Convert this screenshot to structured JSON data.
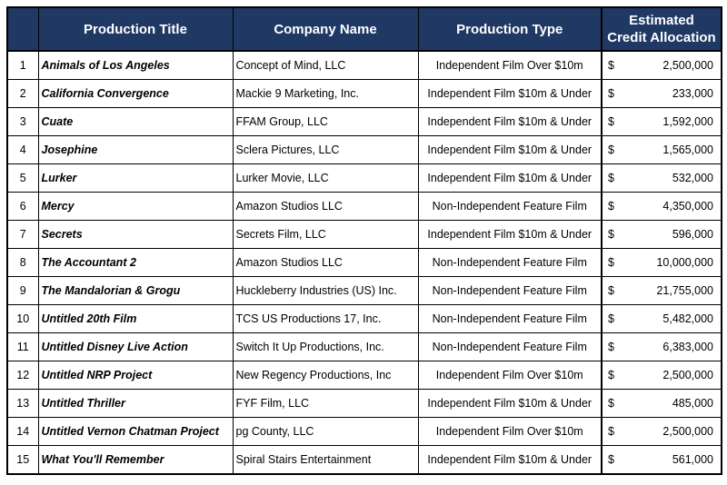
{
  "headers": {
    "title": "Production Title",
    "company": "Company Name",
    "type": "Production Type",
    "credit_line1": "Estimated",
    "credit_line2": "Credit Allocation"
  },
  "currency_symbol": "$",
  "rows": [
    {
      "num": "1",
      "title": "Animals of Los Angeles",
      "company": "Concept of Mind, LLC",
      "type": "Independent Film Over $10m",
      "amount": "2,500,000"
    },
    {
      "num": "2",
      "title": "California Convergence",
      "company": "Mackie 9 Marketing, Inc.",
      "type": "Independent Film $10m & Under",
      "amount": "233,000"
    },
    {
      "num": "3",
      "title": "Cuate",
      "company": "FFAM Group, LLC",
      "type": "Independent Film $10m & Under",
      "amount": "1,592,000"
    },
    {
      "num": "4",
      "title": "Josephine",
      "company": "Sclera Pictures, LLC",
      "type": "Independent Film $10m & Under",
      "amount": "1,565,000"
    },
    {
      "num": "5",
      "title": "Lurker",
      "company": "Lurker Movie, LLC",
      "type": "Independent Film $10m & Under",
      "amount": "532,000"
    },
    {
      "num": "6",
      "title": "Mercy",
      "company": "Amazon Studios LLC",
      "type": "Non-Independent Feature Film",
      "amount": "4,350,000"
    },
    {
      "num": "7",
      "title": "Secrets",
      "company": "Secrets Film, LLC",
      "type": "Independent Film $10m & Under",
      "amount": "596,000"
    },
    {
      "num": "8",
      "title": "The Accountant 2",
      "company": "Amazon Studios LLC",
      "type": "Non-Independent Feature Film",
      "amount": "10,000,000"
    },
    {
      "num": "9",
      "title": "The Mandalorian & Grogu",
      "company": "Huckleberry Industries (US) Inc.",
      "type": "Non-Independent Feature Film",
      "amount": "21,755,000"
    },
    {
      "num": "10",
      "title": "Untitled 20th Film",
      "company": "TCS US Productions 17, Inc.",
      "type": "Non-Independent Feature Film",
      "amount": "5,482,000"
    },
    {
      "num": "11",
      "title": "Untitled Disney Live Action",
      "company": "Switch It Up Productions, Inc.",
      "type": "Non-Independent Feature Film",
      "amount": "6,383,000"
    },
    {
      "num": "12",
      "title": "Untitled NRP Project",
      "company": "New Regency Productions, Inc",
      "type": "Independent Film Over $10m",
      "amount": "2,500,000"
    },
    {
      "num": "13",
      "title": "Untitled Thriller",
      "company": "FYF Film, LLC",
      "type": "Independent Film $10m & Under",
      "amount": "485,000"
    },
    {
      "num": "14",
      "title": "Untitled Vernon Chatman Project",
      "company": "pg County, LLC",
      "type": "Independent Film Over $10m",
      "amount": "2,500,000"
    },
    {
      "num": "15",
      "title": "What You'll Remember",
      "company": "Spiral Stairs Entertainment",
      "type": "Independent Film $10m & Under",
      "amount": "561,000"
    }
  ]
}
